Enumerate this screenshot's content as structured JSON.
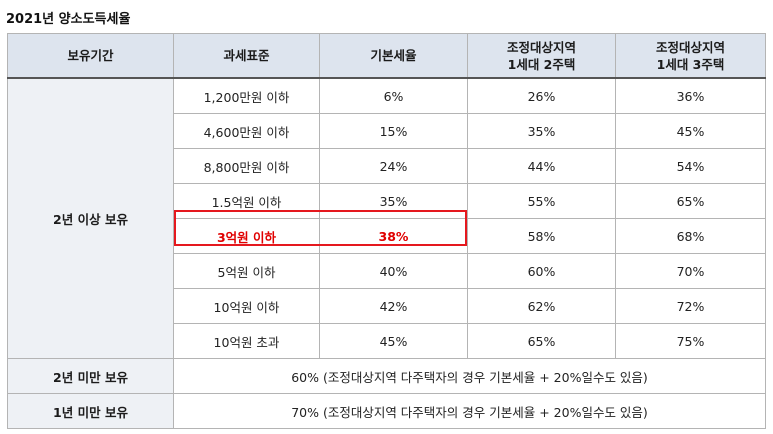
{
  "title": "2021년 양소도득세율",
  "columns": [
    "보유기간",
    "과세표준",
    "기본세율",
    [
      "조정대상지역",
      "1세대 2주택"
    ],
    [
      "조정대상지역",
      "1세대 3주택"
    ]
  ],
  "group_2y_plus": {
    "period": "2년 이상 보유",
    "rows": [
      {
        "base": "1,200만원 이하",
        "rate": "6%",
        "two": "26%",
        "three": "36%"
      },
      {
        "base": "4,600만원 이하",
        "rate": "15%",
        "two": "35%",
        "three": "45%"
      },
      {
        "base": "8,800만원 이하",
        "rate": "24%",
        "two": "44%",
        "three": "54%"
      },
      {
        "base": "1.5억원 이하",
        "rate": "35%",
        "two": "55%",
        "three": "65%"
      },
      {
        "base": "3억원 이하",
        "rate": "38%",
        "two": "58%",
        "three": "68%",
        "highlighted": true
      },
      {
        "base": "5억원 이하",
        "rate": "40%",
        "two": "60%",
        "three": "70%"
      },
      {
        "base": "10억원 이하",
        "rate": "42%",
        "two": "62%",
        "three": "72%"
      },
      {
        "base": "10억원 초과",
        "rate": "45%",
        "two": "65%",
        "three": "75%"
      }
    ]
  },
  "group_under_2y": {
    "period": "2년 미만 보유",
    "note": "60% (조정대상지역 다주택자의 경우 기본세율 + 20%일수도 있음)"
  },
  "group_under_1y": {
    "period": "1년 미만 보유",
    "note": "70% (조정대상지역 다주택자의 경우 기본세율 + 20%일수도 있음)"
  },
  "highlight_color": "#e5181e",
  "header_bg": "#dde4ee"
}
